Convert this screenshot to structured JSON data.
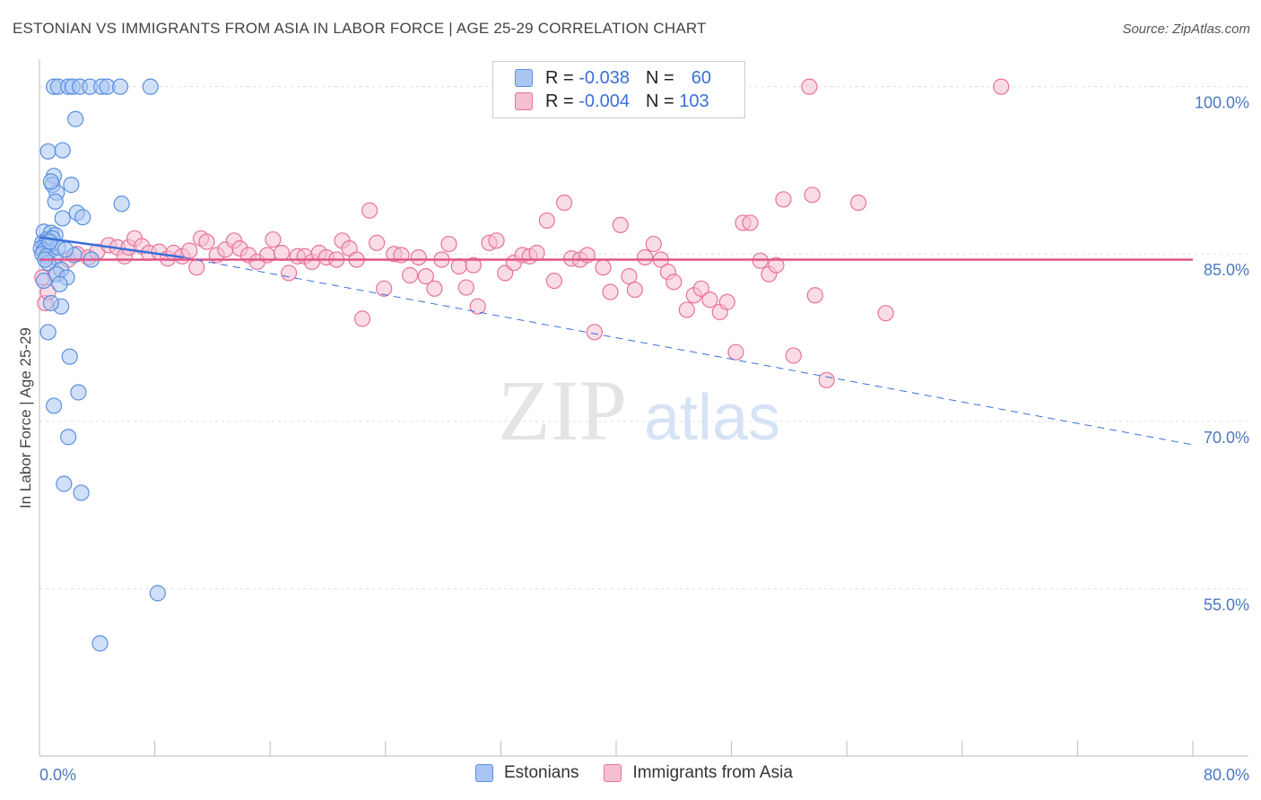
{
  "header": {
    "title": "ESTONIAN VS IMMIGRANTS FROM ASIA IN LABOR FORCE | AGE 25-29 CORRELATION CHART",
    "source": "Source: ZipAtlas.com"
  },
  "legend": {
    "rows": [
      {
        "r_label": "R =",
        "r_value": "-0.038",
        "n_label": "N =",
        "n_value": "60"
      },
      {
        "r_label": "R =",
        "r_value": "-0.004",
        "n_label": "N =",
        "n_value": "103"
      }
    ],
    "series_names": [
      "Estonians",
      "Immigrants from Asia"
    ]
  },
  "watermark": {
    "zip": "ZIP",
    "atlas": "atlas"
  },
  "colors": {
    "blue": "#5b8fe0",
    "blue_fill": "#a9c6f2",
    "blue_line": "#3a6fd8",
    "pink": "#e8729a",
    "pink_fill": "#f6bfd1",
    "pink_line": "#e05586",
    "grid": "#dddddd",
    "tick_text": "#4a78c2"
  },
  "chart_data": {
    "type": "scatter",
    "title": "ESTONIAN VS IMMIGRANTS FROM ASIA IN LABOR FORCE | AGE 25-29 CORRELATION CHART",
    "xlabel": "",
    "ylabel": "In Labor Force | Age 25-29",
    "xlim": [
      0,
      80
    ],
    "ylim": [
      40,
      101.5
    ],
    "x_tick_labels": [
      "0.0%",
      "80.0%"
    ],
    "y_ticks": [
      100,
      85,
      70,
      55
    ],
    "y_tick_labels": [
      "100.0%",
      "85.0%",
      "70.0%",
      "55.0%"
    ],
    "series": [
      {
        "name": "Estonians",
        "R": -0.038,
        "N": 60,
        "trend_solid": [
          [
            0,
            86.5
          ],
          [
            10,
            84.7
          ]
        ],
        "trend_dashed": [
          [
            10,
            84.7
          ],
          [
            80,
            67.9
          ]
        ],
        "points": [
          [
            1.0,
            100
          ],
          [
            1.3,
            100
          ],
          [
            2.0,
            100
          ],
          [
            2.3,
            100
          ],
          [
            2.8,
            100
          ],
          [
            3.5,
            100
          ],
          [
            4.3,
            100
          ],
          [
            4.7,
            100
          ],
          [
            5.6,
            100
          ],
          [
            7.7,
            100
          ],
          [
            2.5,
            97.1
          ],
          [
            0.6,
            94.2
          ],
          [
            1.6,
            94.3
          ],
          [
            1.0,
            92.0
          ],
          [
            0.9,
            91.2
          ],
          [
            2.2,
            91.2
          ],
          [
            1.2,
            90.5
          ],
          [
            0.8,
            91.5
          ],
          [
            1.1,
            89.7
          ],
          [
            5.7,
            89.5
          ],
          [
            2.6,
            88.7
          ],
          [
            3.0,
            88.3
          ],
          [
            1.6,
            88.2
          ],
          [
            0.3,
            87.0
          ],
          [
            0.8,
            86.9
          ],
          [
            1.1,
            86.7
          ],
          [
            0.5,
            86.3
          ],
          [
            0.2,
            86.0
          ],
          [
            0.4,
            85.9
          ],
          [
            0.6,
            85.8
          ],
          [
            0.1,
            85.5
          ],
          [
            0.3,
            85.3
          ],
          [
            0.7,
            85.2
          ],
          [
            0.2,
            85.0
          ],
          [
            0.5,
            84.8
          ],
          [
            1.1,
            84.7
          ],
          [
            3.6,
            84.5
          ],
          [
            0.6,
            84.2
          ],
          [
            1.5,
            83.6
          ],
          [
            1.2,
            83.2
          ],
          [
            1.9,
            82.9
          ],
          [
            0.3,
            82.6
          ],
          [
            1.4,
            82.3
          ],
          [
            1.5,
            80.3
          ],
          [
            0.8,
            80.6
          ],
          [
            0.6,
            78.0
          ],
          [
            2.1,
            75.8
          ],
          [
            2.7,
            72.6
          ],
          [
            1.0,
            71.4
          ],
          [
            2.0,
            68.6
          ],
          [
            1.7,
            64.4
          ],
          [
            2.9,
            63.6
          ],
          [
            8.2,
            54.6
          ],
          [
            4.2,
            50.1
          ],
          [
            0.9,
            86.4
          ],
          [
            1.3,
            85.6
          ],
          [
            0.4,
            84.5
          ],
          [
            2.4,
            84.9
          ],
          [
            1.8,
            85.4
          ],
          [
            0.7,
            86.1
          ]
        ]
      },
      {
        "name": "Immigrants from Asia",
        "R": -0.004,
        "N": 103,
        "trend": [
          [
            0,
            84.5
          ],
          [
            80,
            84.5
          ]
        ],
        "points": [
          [
            53.4,
            100
          ],
          [
            66.7,
            100
          ],
          [
            0.2,
            82.9
          ],
          [
            0.4,
            80.6
          ],
          [
            0.6,
            81.6
          ],
          [
            1.1,
            83.2
          ],
          [
            2.0,
            84.5
          ],
          [
            2.6,
            85.0
          ],
          [
            3.4,
            84.7
          ],
          [
            4.0,
            85.2
          ],
          [
            4.8,
            85.8
          ],
          [
            5.4,
            85.6
          ],
          [
            5.9,
            84.8
          ],
          [
            6.2,
            85.6
          ],
          [
            6.6,
            86.4
          ],
          [
            7.1,
            85.7
          ],
          [
            7.6,
            85.1
          ],
          [
            8.3,
            85.2
          ],
          [
            8.9,
            84.6
          ],
          [
            9.3,
            85.1
          ],
          [
            9.9,
            84.8
          ],
          [
            10.4,
            85.3
          ],
          [
            10.9,
            83.8
          ],
          [
            11.2,
            86.4
          ],
          [
            11.6,
            86.1
          ],
          [
            12.3,
            84.9
          ],
          [
            12.9,
            85.4
          ],
          [
            13.5,
            86.2
          ],
          [
            13.9,
            85.5
          ],
          [
            14.5,
            84.9
          ],
          [
            15.1,
            84.3
          ],
          [
            15.8,
            84.9
          ],
          [
            16.2,
            86.3
          ],
          [
            16.8,
            85.1
          ],
          [
            17.3,
            83.3
          ],
          [
            17.9,
            84.8
          ],
          [
            18.4,
            84.8
          ],
          [
            18.9,
            84.3
          ],
          [
            19.4,
            85.1
          ],
          [
            19.9,
            84.7
          ],
          [
            20.6,
            84.5
          ],
          [
            21.0,
            86.2
          ],
          [
            21.5,
            85.5
          ],
          [
            22.0,
            84.5
          ],
          [
            22.4,
            79.2
          ],
          [
            22.9,
            88.9
          ],
          [
            23.4,
            86.0
          ],
          [
            23.9,
            81.9
          ],
          [
            24.6,
            85.0
          ],
          [
            25.1,
            84.9
          ],
          [
            25.7,
            83.1
          ],
          [
            26.3,
            84.7
          ],
          [
            26.8,
            83.0
          ],
          [
            27.4,
            81.9
          ],
          [
            27.9,
            84.5
          ],
          [
            28.4,
            85.9
          ],
          [
            29.1,
            83.9
          ],
          [
            29.6,
            82.0
          ],
          [
            30.1,
            84.0
          ],
          [
            30.4,
            80.3
          ],
          [
            31.2,
            86.0
          ],
          [
            31.7,
            86.2
          ],
          [
            32.3,
            83.3
          ],
          [
            32.9,
            84.2
          ],
          [
            33.5,
            84.9
          ],
          [
            34.0,
            84.8
          ],
          [
            34.5,
            85.1
          ],
          [
            35.2,
            88.0
          ],
          [
            35.7,
            82.6
          ],
          [
            36.4,
            89.6
          ],
          [
            36.9,
            84.6
          ],
          [
            37.5,
            84.5
          ],
          [
            38.0,
            84.9
          ],
          [
            38.5,
            78.0
          ],
          [
            39.1,
            83.8
          ],
          [
            39.6,
            81.6
          ],
          [
            40.3,
            87.6
          ],
          [
            40.9,
            83.0
          ],
          [
            41.3,
            81.8
          ],
          [
            42.0,
            84.7
          ],
          [
            42.6,
            85.9
          ],
          [
            43.1,
            84.5
          ],
          [
            43.6,
            83.4
          ],
          [
            44.0,
            82.5
          ],
          [
            44.9,
            80.0
          ],
          [
            45.4,
            81.3
          ],
          [
            45.9,
            81.9
          ],
          [
            46.5,
            80.9
          ],
          [
            47.2,
            79.8
          ],
          [
            47.7,
            80.7
          ],
          [
            48.3,
            76.2
          ],
          [
            48.8,
            87.8
          ],
          [
            49.3,
            87.8
          ],
          [
            50.0,
            84.4
          ],
          [
            50.6,
            83.2
          ],
          [
            51.1,
            84.0
          ],
          [
            51.6,
            89.9
          ],
          [
            52.3,
            75.9
          ],
          [
            53.6,
            90.3
          ],
          [
            53.8,
            81.3
          ],
          [
            54.6,
            73.7
          ],
          [
            56.8,
            89.6
          ],
          [
            58.7,
            79.7
          ]
        ]
      }
    ]
  }
}
